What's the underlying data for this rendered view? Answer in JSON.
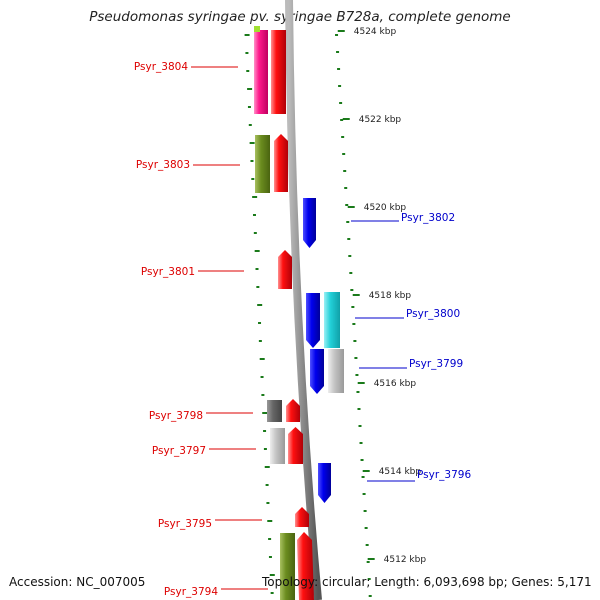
{
  "title": "Pseudomonas syringae pv. syringae B728a, complete genome",
  "footer": {
    "accession": "Accession: NC_007005",
    "topology": "Topology: circular; Length: 6,093,698 bp; Genes: 5,171"
  },
  "colors": {
    "red": "#e8000a",
    "pink": "#ff1a8c",
    "olive": "#6b8c1f",
    "blue": "#0000dd",
    "cyan": "#22d0d8",
    "dark_gray": "#666666",
    "light_gray": "#c0c0c0",
    "tick_green": "#1a7a1a",
    "label_red": "#dd0000",
    "label_blue": "#0000cc"
  },
  "scale_ticks": [
    {
      "label": "4524 kbp",
      "kbp": 4524
    },
    {
      "label": "4522 kbp",
      "kbp": 4522
    },
    {
      "label": "4520 kbp",
      "kbp": 4520
    },
    {
      "label": "4518 kbp",
      "kbp": 4518
    },
    {
      "label": "4516 kbp",
      "kbp": 4516
    },
    {
      "label": "4514 kbp",
      "kbp": 4514
    },
    {
      "label": "4512 kbp",
      "kbp": 4512
    }
  ],
  "gene_labels": [
    {
      "text": "Psyr_3804",
      "strand": "left"
    },
    {
      "text": "Psyr_3803",
      "strand": "left"
    },
    {
      "text": "Psyr_3802",
      "strand": "right"
    },
    {
      "text": "Psyr_3801",
      "strand": "left"
    },
    {
      "text": "Psyr_3800",
      "strand": "right"
    },
    {
      "text": "Psyr_3799",
      "strand": "right"
    },
    {
      "text": "Psyr_3798",
      "strand": "left"
    },
    {
      "text": "Psyr_3797",
      "strand": "left"
    },
    {
      "text": "Psyr_3796",
      "strand": "right"
    },
    {
      "text": "Psyr_3795",
      "strand": "left"
    },
    {
      "text": "Psyr_3794",
      "strand": "left"
    }
  ]
}
